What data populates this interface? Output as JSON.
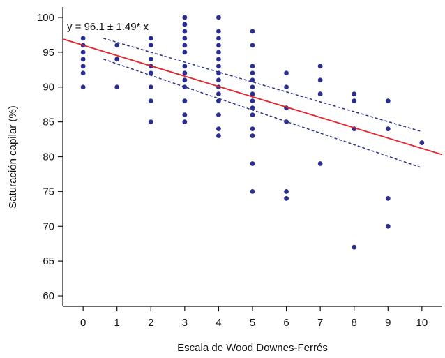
{
  "chart_data": {
    "type": "scatter",
    "title": "",
    "xlabel": "Escala de Wood Downes-Ferrés",
    "ylabel": "Saturación capilar (%)",
    "xlim": [
      -0.6,
      10.6
    ],
    "ylim": [
      58.5,
      101.5
    ],
    "x_ticks": [
      0,
      1,
      2,
      3,
      4,
      5,
      6,
      7,
      8,
      9,
      10
    ],
    "x_tick_labels": [
      "0",
      "1",
      "2",
      "3",
      "4",
      "5",
      "6",
      "7",
      "8",
      "9",
      "10"
    ],
    "y_ticks": [
      60,
      65,
      70,
      75,
      80,
      85,
      90,
      95,
      100
    ],
    "y_tick_labels": [
      "60",
      "65",
      "70",
      "75",
      "80",
      "85",
      "90",
      "95",
      "100"
    ],
    "annotation": "y = 96.1 ± 1.49* x",
    "grid": false,
    "legend": "none",
    "colors": {
      "points": "#2b2f8f",
      "fit_line": "#e8222a",
      "ci_band": "#2b2f8f"
    },
    "points": [
      {
        "x": 0,
        "y": 97
      },
      {
        "x": 0,
        "y": 96
      },
      {
        "x": 0,
        "y": 95
      },
      {
        "x": 0,
        "y": 94
      },
      {
        "x": 0,
        "y": 93
      },
      {
        "x": 0,
        "y": 92
      },
      {
        "x": 0,
        "y": 90
      },
      {
        "x": 1,
        "y": 96
      },
      {
        "x": 1,
        "y": 94
      },
      {
        "x": 1,
        "y": 90
      },
      {
        "x": 2,
        "y": 97
      },
      {
        "x": 2,
        "y": 96
      },
      {
        "x": 2,
        "y": 94
      },
      {
        "x": 2,
        "y": 93
      },
      {
        "x": 2,
        "y": 92
      },
      {
        "x": 2,
        "y": 90
      },
      {
        "x": 2,
        "y": 88
      },
      {
        "x": 2,
        "y": 85
      },
      {
        "x": 3,
        "y": 100
      },
      {
        "x": 3,
        "y": 99
      },
      {
        "x": 3,
        "y": 98
      },
      {
        "x": 3,
        "y": 97
      },
      {
        "x": 3,
        "y": 96
      },
      {
        "x": 3,
        "y": 95
      },
      {
        "x": 3,
        "y": 93
      },
      {
        "x": 3,
        "y": 92
      },
      {
        "x": 3,
        "y": 91
      },
      {
        "x": 3,
        "y": 90
      },
      {
        "x": 3,
        "y": 88
      },
      {
        "x": 3,
        "y": 86
      },
      {
        "x": 3,
        "y": 85
      },
      {
        "x": 4,
        "y": 100
      },
      {
        "x": 4,
        "y": 98
      },
      {
        "x": 4,
        "y": 97
      },
      {
        "x": 4,
        "y": 96
      },
      {
        "x": 4,
        "y": 95
      },
      {
        "x": 4,
        "y": 94
      },
      {
        "x": 4,
        "y": 93
      },
      {
        "x": 4,
        "y": 92
      },
      {
        "x": 4,
        "y": 91
      },
      {
        "x": 4,
        "y": 90
      },
      {
        "x": 4,
        "y": 89
      },
      {
        "x": 4,
        "y": 88
      },
      {
        "x": 4,
        "y": 86
      },
      {
        "x": 4,
        "y": 84
      },
      {
        "x": 4,
        "y": 83
      },
      {
        "x": 5,
        "y": 98
      },
      {
        "x": 5,
        "y": 96
      },
      {
        "x": 5,
        "y": 93
      },
      {
        "x": 5,
        "y": 92
      },
      {
        "x": 5,
        "y": 91
      },
      {
        "x": 5,
        "y": 90
      },
      {
        "x": 5,
        "y": 89
      },
      {
        "x": 5,
        "y": 88
      },
      {
        "x": 5,
        "y": 87
      },
      {
        "x": 5,
        "y": 86
      },
      {
        "x": 5,
        "y": 84
      },
      {
        "x": 5,
        "y": 83
      },
      {
        "x": 5,
        "y": 79
      },
      {
        "x": 5,
        "y": 75
      },
      {
        "x": 6,
        "y": 92
      },
      {
        "x": 6,
        "y": 90
      },
      {
        "x": 6,
        "y": 87
      },
      {
        "x": 6,
        "y": 85
      },
      {
        "x": 6,
        "y": 75
      },
      {
        "x": 6,
        "y": 74
      },
      {
        "x": 7,
        "y": 93
      },
      {
        "x": 7,
        "y": 91
      },
      {
        "x": 7,
        "y": 89
      },
      {
        "x": 7,
        "y": 79
      },
      {
        "x": 8,
        "y": 89
      },
      {
        "x": 8,
        "y": 88
      },
      {
        "x": 8,
        "y": 84
      },
      {
        "x": 8,
        "y": 67
      },
      {
        "x": 9,
        "y": 88
      },
      {
        "x": 9,
        "y": 84
      },
      {
        "x": 9,
        "y": 74
      },
      {
        "x": 9,
        "y": 70
      },
      {
        "x": 10,
        "y": 82
      }
    ],
    "fit_line": {
      "x": [
        -0.6,
        10.6
      ],
      "y": [
        96.9,
        80.3
      ]
    },
    "ci_upper": {
      "x": [
        0.6,
        10
      ],
      "y": [
        97.0,
        83.6
      ]
    },
    "ci_lower": {
      "x": [
        0.6,
        10
      ],
      "y": [
        94.0,
        78.4
      ]
    }
  }
}
